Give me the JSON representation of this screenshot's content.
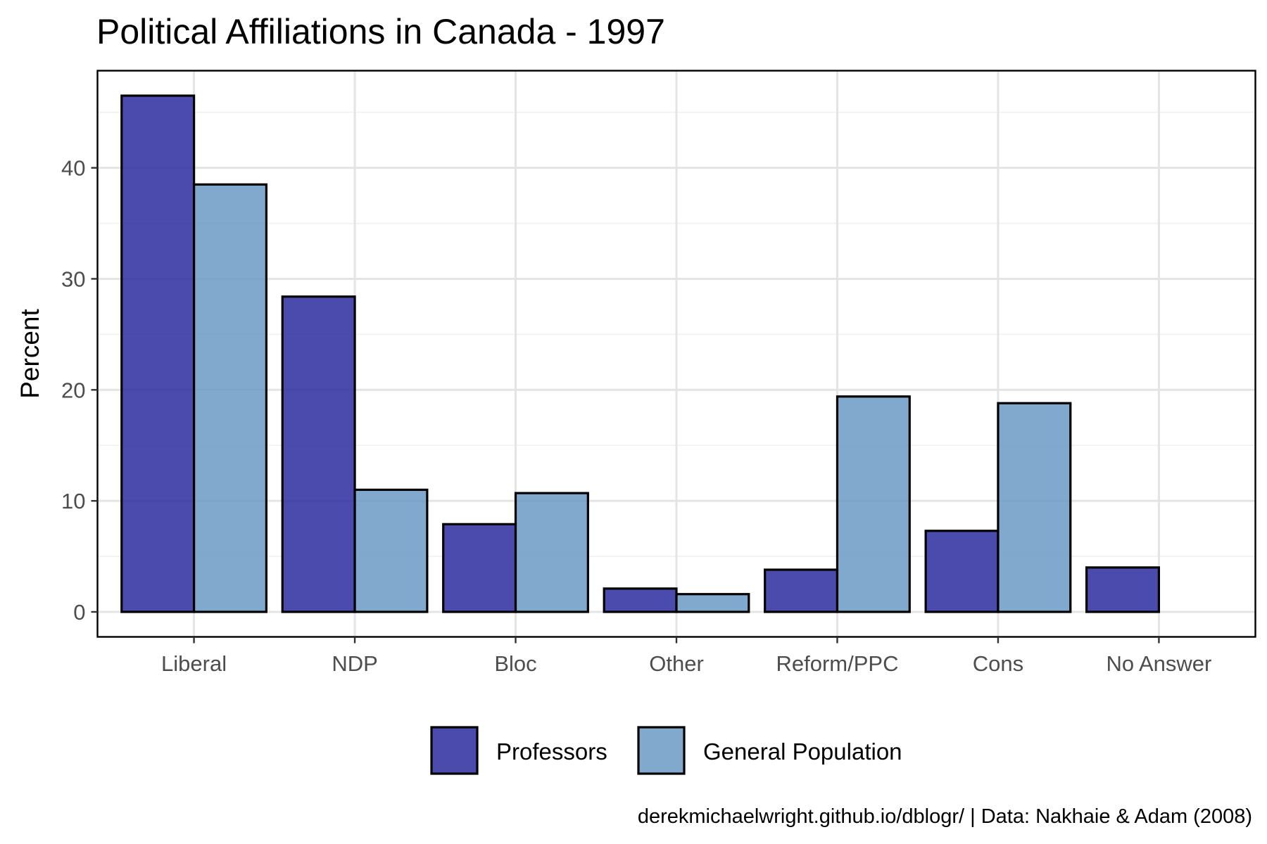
{
  "chart_data": {
    "type": "bar",
    "title": "Political Affiliations in Canada - 1997",
    "xlabel": "",
    "ylabel": "Percent",
    "categories": [
      "Liberal",
      "NDP",
      "Bloc",
      "Other",
      "Reform/PPC",
      "Cons",
      "No Answer"
    ],
    "series": [
      {
        "name": "Professors",
        "color": "#2b2ba0",
        "values": [
          46.5,
          28.4,
          7.9,
          2.1,
          3.8,
          7.3,
          4.0
        ]
      },
      {
        "name": "General Population",
        "color": "#6b9ac6",
        "values": [
          38.5,
          11.0,
          10.7,
          1.6,
          19.4,
          18.8,
          null
        ]
      }
    ],
    "yticks": [
      0,
      10,
      20,
      30,
      40
    ],
    "ylim": [
      -2.25,
      48.75
    ],
    "grid": true,
    "legend_position": "bottom",
    "caption": "derekmichaelwright.github.io/dblogr/ | Data: Nakhaie & Adam (2008)"
  }
}
